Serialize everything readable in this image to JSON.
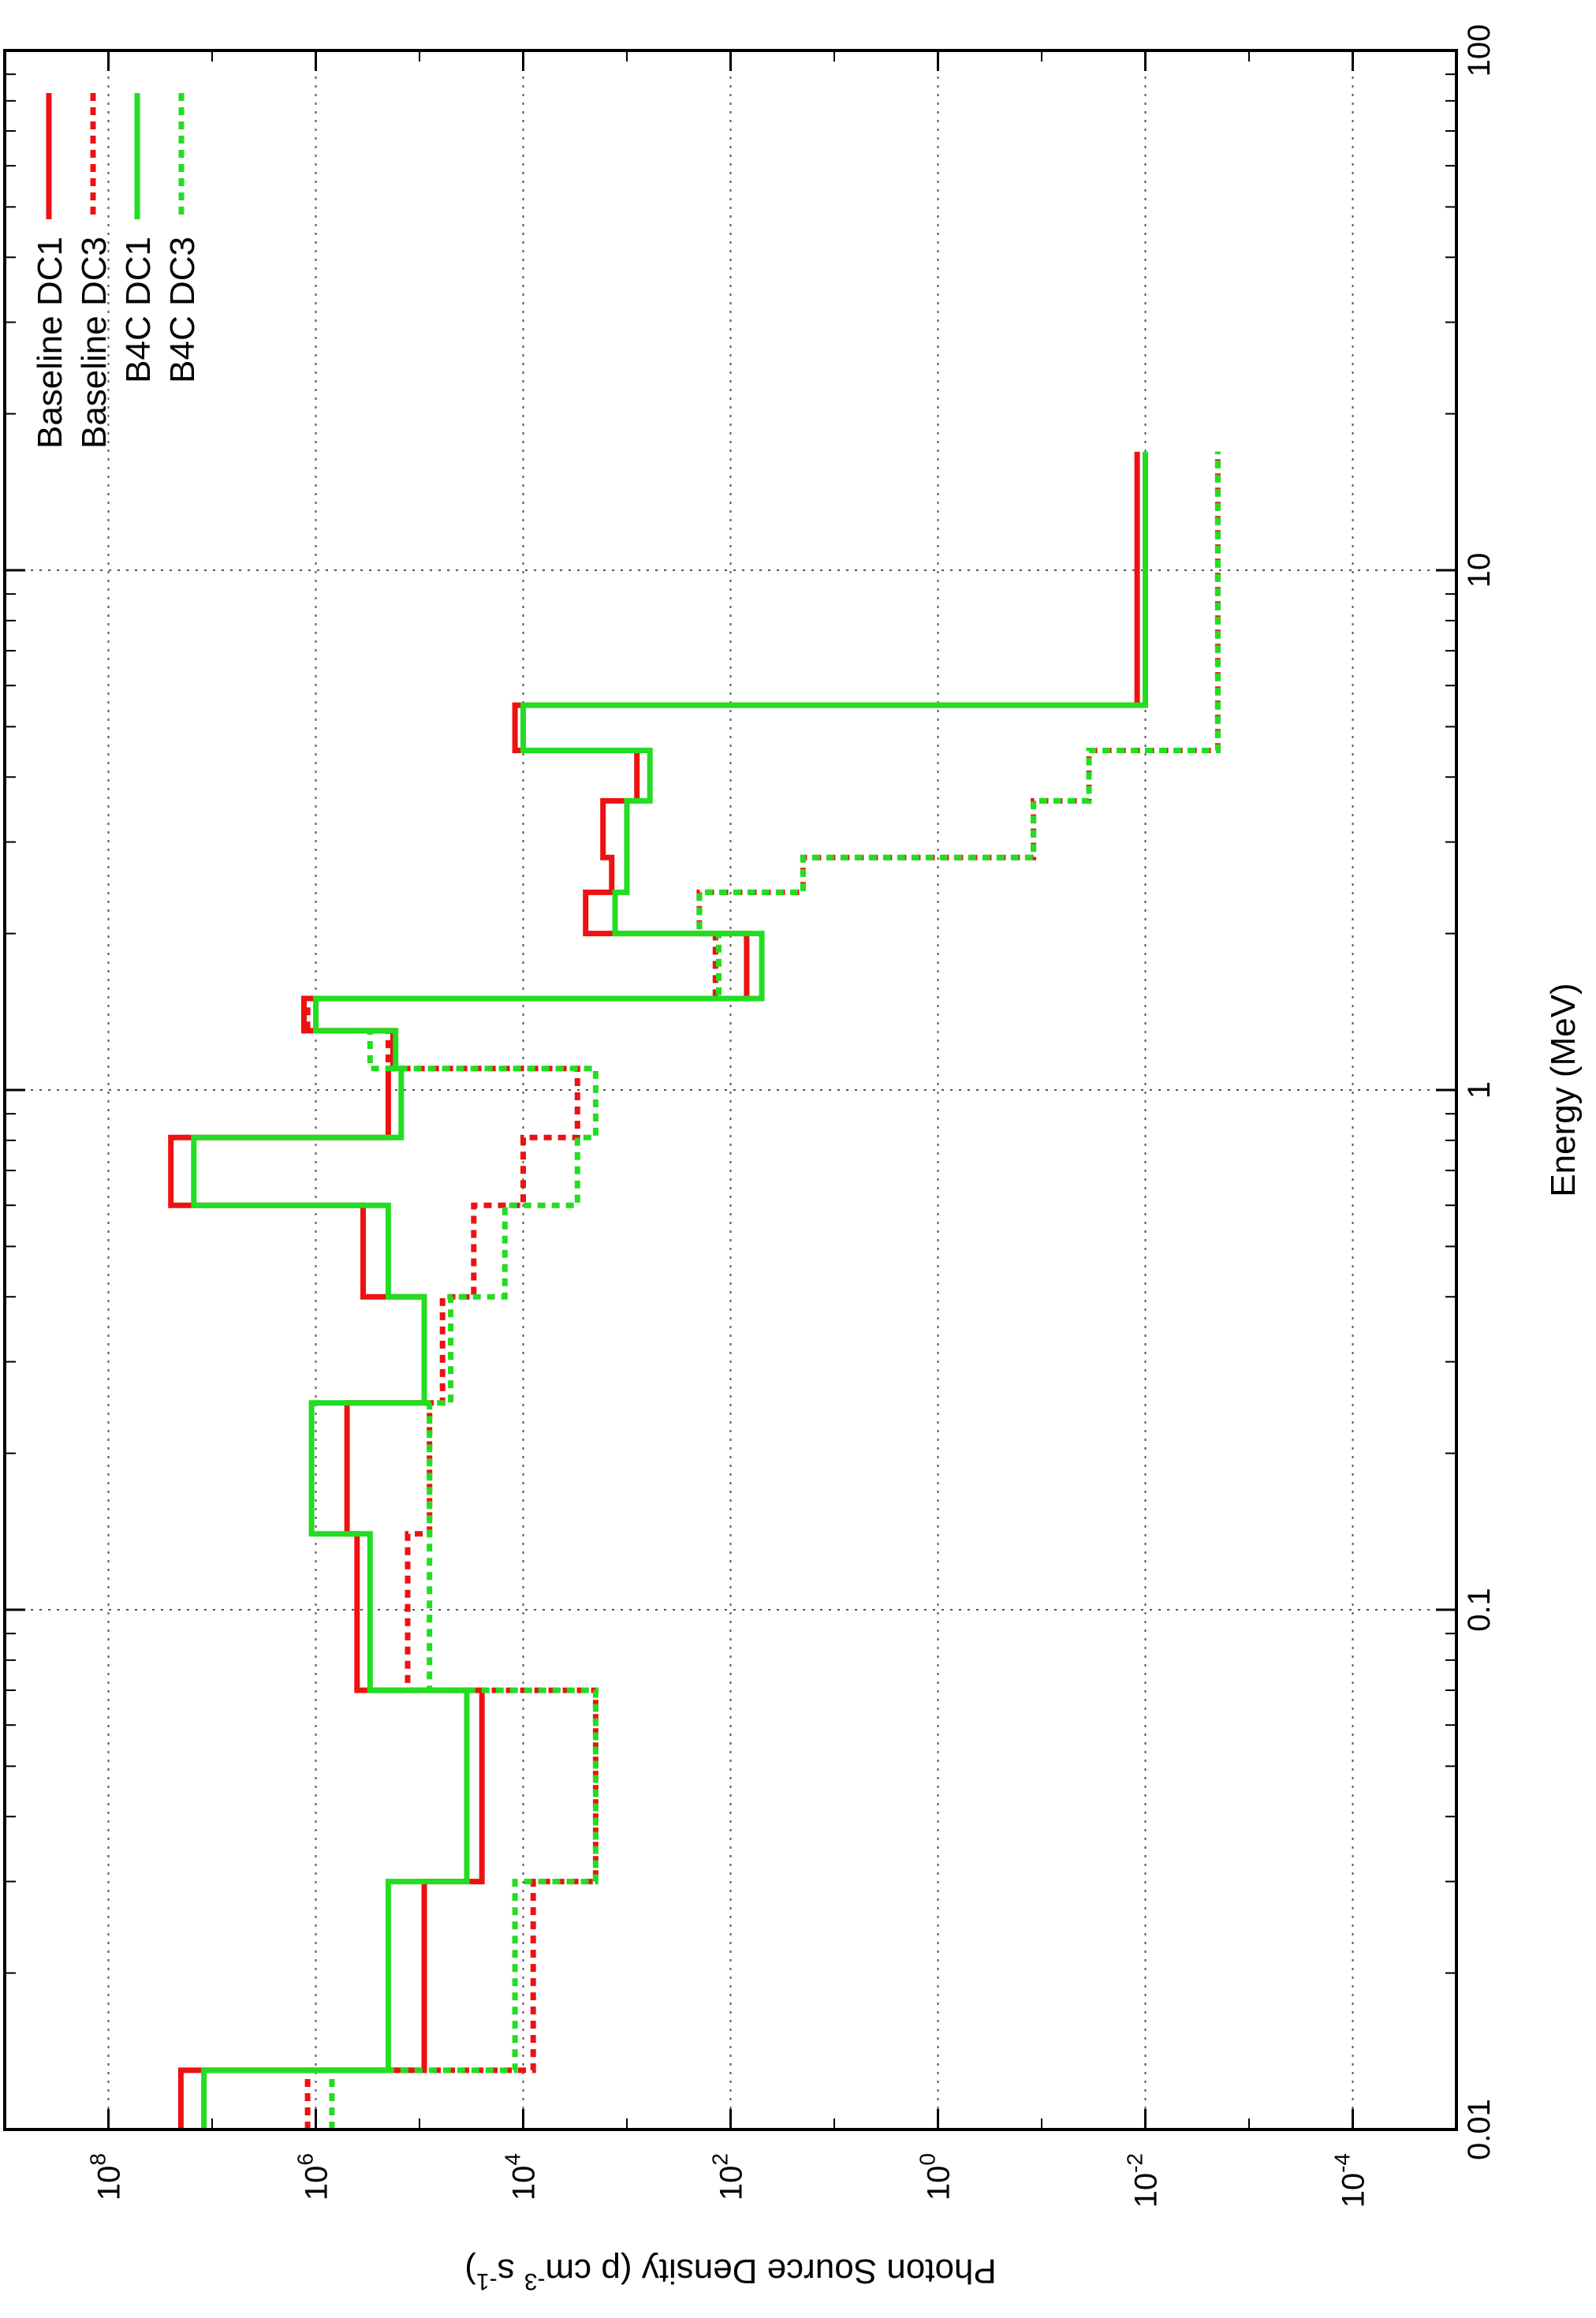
{
  "chart_data": {
    "type": "line",
    "step": true,
    "orientation": "rotated-90-cw",
    "xlabel": "Energy (MeV)",
    "ylabel": "Photon Source Density (p cm-3 s-1)",
    "ylabel_parts": {
      "base": "Photon Source Density (p cm",
      "exp1": "-3",
      "mid": " s",
      "exp2": "-1",
      "end": ")"
    },
    "x_scale": "log",
    "y_scale": "log",
    "xlim": [
      0.01,
      100
    ],
    "ylim": [
      1e-05,
      1000000000
    ],
    "x_ticks": [
      {
        "value": 0.01,
        "label": "0.01"
      },
      {
        "value": 0.1,
        "label": "0.1"
      },
      {
        "value": 1,
        "label": "1"
      },
      {
        "value": 10,
        "label": "10"
      },
      {
        "value": 100,
        "label": "100"
      }
    ],
    "y_ticks": [
      {
        "value": 0.0001,
        "base": "10",
        "exp": "-4"
      },
      {
        "value": 0.01,
        "base": "10",
        "exp": "-2"
      },
      {
        "value": 1,
        "base": "10",
        "exp": "0"
      },
      {
        "value": 100,
        "base": "10",
        "exp": "2"
      },
      {
        "value": 10000,
        "base": "10",
        "exp": "4"
      },
      {
        "value": 1000000,
        "base": "10",
        "exp": "6"
      },
      {
        "value": 100000000,
        "base": "10",
        "exp": "8"
      }
    ],
    "grid": true,
    "legend_position": "top-right",
    "series": [
      {
        "name": "Baseline DC1",
        "color": "#ee1111",
        "dash": "solid",
        "points": [
          [
            0.01,
            20000000
          ],
          [
            0.013,
            20000000
          ],
          [
            0.013,
            90000
          ],
          [
            0.03,
            90000
          ],
          [
            0.03,
            25000
          ],
          [
            0.07,
            25000
          ],
          [
            0.07,
            400000
          ],
          [
            0.14,
            400000
          ],
          [
            0.14,
            500000
          ],
          [
            0.25,
            500000
          ],
          [
            0.25,
            90000
          ],
          [
            0.4,
            90000
          ],
          [
            0.4,
            350000
          ],
          [
            0.6,
            350000
          ],
          [
            0.6,
            25000000
          ],
          [
            0.81,
            25000000
          ],
          [
            0.81,
            200000
          ],
          [
            1.1,
            200000
          ],
          [
            1.1,
            180000
          ],
          [
            1.3,
            180000
          ],
          [
            1.3,
            1300000
          ],
          [
            1.5,
            1300000
          ],
          [
            1.5,
            70
          ],
          [
            2,
            70
          ],
          [
            2,
            2500
          ],
          [
            2.4,
            2500
          ],
          [
            2.4,
            1400
          ],
          [
            2.8,
            1400
          ],
          [
            2.8,
            1700
          ],
          [
            3.6,
            1700
          ],
          [
            3.6,
            800
          ],
          [
            4.5,
            800
          ],
          [
            4.5,
            12000
          ],
          [
            5.5,
            12000
          ],
          [
            5.5,
            0.012
          ],
          [
            16.9,
            0.012
          ]
        ]
      },
      {
        "name": "Baseline DC3",
        "color": "#ee1111",
        "dash": "dotted",
        "points": [
          [
            0.01,
            1200000
          ],
          [
            0.013,
            1200000
          ],
          [
            0.013,
            8000
          ],
          [
            0.03,
            8000
          ],
          [
            0.03,
            2000
          ],
          [
            0.07,
            2000
          ],
          [
            0.07,
            130000
          ],
          [
            0.14,
            130000
          ],
          [
            0.14,
            80000
          ],
          [
            0.25,
            80000
          ],
          [
            0.25,
            60000
          ],
          [
            0.4,
            60000
          ],
          [
            0.4,
            30000
          ],
          [
            0.6,
            30000
          ],
          [
            0.6,
            10000
          ],
          [
            0.81,
            10000
          ],
          [
            0.81,
            3000
          ],
          [
            1.1,
            3000
          ],
          [
            1.1,
            200000
          ],
          [
            1.3,
            200000
          ],
          [
            1.3,
            1200000
          ],
          [
            1.5,
            1200000
          ],
          [
            1.5,
            140
          ],
          [
            2,
            140
          ],
          [
            2,
            200
          ],
          [
            2.4,
            200
          ],
          [
            2.4,
            20
          ],
          [
            2.8,
            20
          ],
          [
            2.8,
            0.12
          ],
          [
            3.6,
            0.12
          ],
          [
            3.6,
            0.035
          ],
          [
            4.5,
            0.035
          ],
          [
            4.5,
            0.002
          ],
          [
            16.9,
            0.002
          ]
        ]
      },
      {
        "name": "B4C DC1",
        "color": "#22dd22",
        "dash": "solid",
        "points": [
          [
            0.01,
            12000000
          ],
          [
            0.013,
            12000000
          ],
          [
            0.013,
            200000
          ],
          [
            0.03,
            200000
          ],
          [
            0.03,
            35000
          ],
          [
            0.07,
            35000
          ],
          [
            0.07,
            300000
          ],
          [
            0.14,
            300000
          ],
          [
            0.14,
            1100000
          ],
          [
            0.25,
            1100000
          ],
          [
            0.25,
            90000
          ],
          [
            0.4,
            90000
          ],
          [
            0.4,
            200000
          ],
          [
            0.6,
            200000
          ],
          [
            0.6,
            15000000
          ],
          [
            0.81,
            15000000
          ],
          [
            0.81,
            150000
          ],
          [
            1.1,
            150000
          ],
          [
            1.1,
            170000
          ],
          [
            1.3,
            170000
          ],
          [
            1.3,
            1000000
          ],
          [
            1.5,
            1000000
          ],
          [
            1.5,
            50
          ],
          [
            2,
            50
          ],
          [
            2,
            1300
          ],
          [
            2.4,
            1300
          ],
          [
            2.4,
            1000
          ],
          [
            2.8,
            1000
          ],
          [
            2.8,
            1000
          ],
          [
            3.6,
            1000
          ],
          [
            3.6,
            600
          ],
          [
            4.5,
            600
          ],
          [
            4.5,
            10000
          ],
          [
            5.5,
            10000
          ],
          [
            5.5,
            0.01
          ],
          [
            16.9,
            0.01
          ]
        ]
      },
      {
        "name": "B4C DC3",
        "color": "#22dd22",
        "dash": "dotted",
        "points": [
          [
            0.01,
            700000
          ],
          [
            0.013,
            700000
          ],
          [
            0.013,
            12000
          ],
          [
            0.03,
            12000
          ],
          [
            0.03,
            2000
          ],
          [
            0.07,
            2000
          ],
          [
            0.07,
            80000
          ],
          [
            0.14,
            80000
          ],
          [
            0.14,
            80000
          ],
          [
            0.25,
            80000
          ],
          [
            0.25,
            50000
          ],
          [
            0.4,
            50000
          ],
          [
            0.4,
            15000
          ],
          [
            0.6,
            15000
          ],
          [
            0.6,
            3000
          ],
          [
            0.81,
            3000
          ],
          [
            0.81,
            2000
          ],
          [
            1.1,
            2000
          ],
          [
            1.1,
            300000
          ],
          [
            1.3,
            300000
          ],
          [
            1.3,
            1000000
          ],
          [
            1.5,
            1000000
          ],
          [
            1.5,
            130
          ],
          [
            2,
            130
          ],
          [
            2,
            200
          ],
          [
            2.4,
            200
          ],
          [
            2.4,
            20
          ],
          [
            2.8,
            20
          ],
          [
            2.8,
            0.12
          ],
          [
            3.6,
            0.12
          ],
          [
            3.6,
            0.035
          ],
          [
            4.5,
            0.035
          ],
          [
            4.5,
            0.002
          ],
          [
            16.9,
            0.002
          ]
        ]
      }
    ]
  }
}
